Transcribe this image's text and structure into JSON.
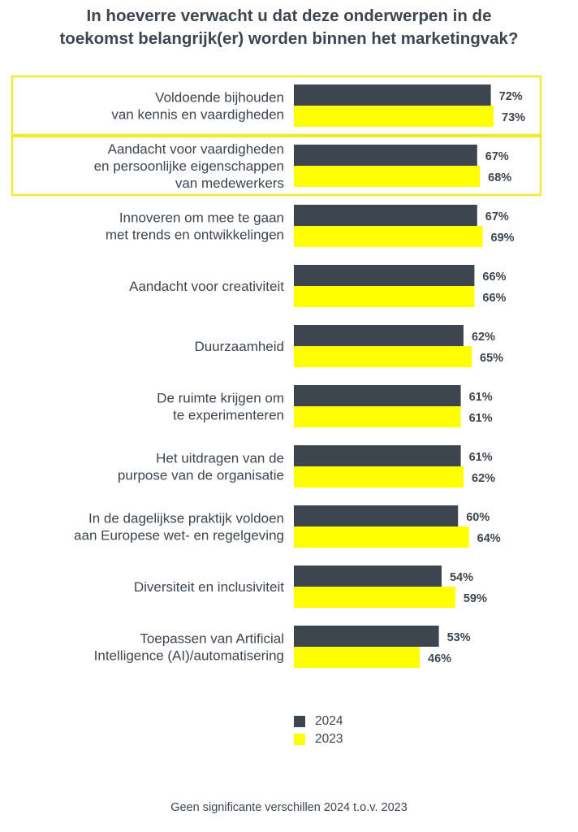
{
  "title_lines": [
    "In hoeverre verwacht u dat deze onderwerpen in de",
    "toekomst belangrijk(er) worden binnen het marketingvak?"
  ],
  "chart_data": {
    "type": "bar",
    "orientation": "horizontal",
    "title": "In hoeverre verwacht u dat deze onderwerpen in de toekomst belangrijk(er) worden binnen het marketingvak?",
    "categories": [
      [
        "Voldoende bijhouden",
        "van kennis en vaardigheden"
      ],
      [
        "Aandacht voor vaardigheden",
        "en persoonlijke eigenschappen",
        "van medewerkers"
      ],
      [
        "Innoveren om mee te gaan",
        "met trends en ontwikkelingen"
      ],
      [
        "Aandacht voor creativiteit"
      ],
      [
        "Duurzaamheid"
      ],
      [
        "De ruimte krijgen om",
        "te experimenteren"
      ],
      [
        "Het uitdragen van de",
        "purpose van de organisatie"
      ],
      [
        "In de dagelijkse praktijk voldoen",
        "aan Europese wet- en regelgeving"
      ],
      [
        "Diversiteit en inclusiviteit"
      ],
      [
        "Toepassen van Artificial",
        "Intelligence (AI)/automatisering"
      ]
    ],
    "series": [
      {
        "name": "2024",
        "color": "#3d454f",
        "values": [
          72,
          67,
          67,
          66,
          62,
          61,
          61,
          60,
          54,
          53
        ]
      },
      {
        "name": "2023",
        "color": "#ffff00",
        "values": [
          73,
          68,
          69,
          66,
          65,
          61,
          62,
          64,
          59,
          46
        ]
      }
    ],
    "value_suffix": "%",
    "highlighted_categories": [
      0,
      1
    ],
    "highlight_color": "#f2ea2e",
    "legend_placement": "bottom",
    "grid": false,
    "xlim": [
      0,
      100
    ]
  },
  "footnote": "Geen significante verschillen 2024 t.o.v. 2023"
}
